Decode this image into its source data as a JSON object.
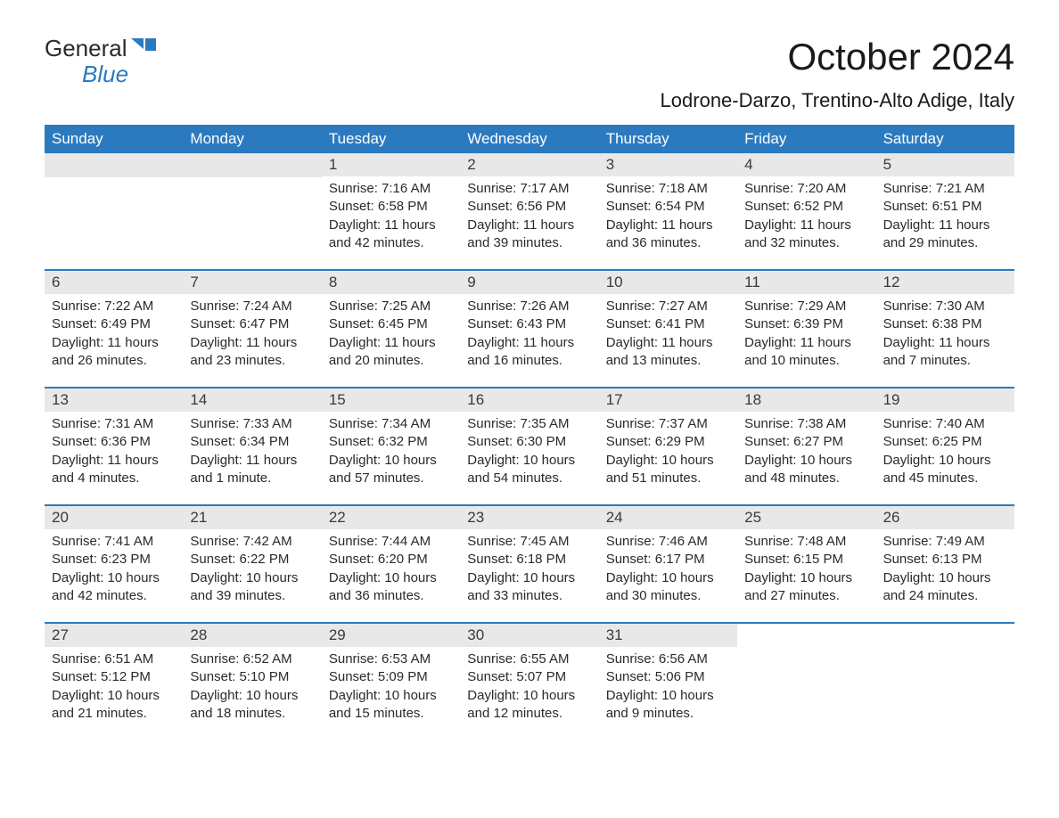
{
  "logo": {
    "top": "General",
    "bottom": "Blue",
    "icon_color": "#2b7ac0"
  },
  "title": "October 2024",
  "location": "Lodrone-Darzo, Trentino-Alto Adige, Italy",
  "colors": {
    "header_bg": "#2b7ac0",
    "header_text": "#ffffff",
    "day_number_bg": "#e8e8e8",
    "border": "#2b7ac0",
    "text": "#2a2a2a"
  },
  "weekdays": [
    "Sunday",
    "Monday",
    "Tuesday",
    "Wednesday",
    "Thursday",
    "Friday",
    "Saturday"
  ],
  "weeks": [
    [
      {
        "empty": true
      },
      {
        "empty": true
      },
      {
        "day": "1",
        "sunrise": "Sunrise: 7:16 AM",
        "sunset": "Sunset: 6:58 PM",
        "daylight1": "Daylight: 11 hours",
        "daylight2": "and 42 minutes."
      },
      {
        "day": "2",
        "sunrise": "Sunrise: 7:17 AM",
        "sunset": "Sunset: 6:56 PM",
        "daylight1": "Daylight: 11 hours",
        "daylight2": "and 39 minutes."
      },
      {
        "day": "3",
        "sunrise": "Sunrise: 7:18 AM",
        "sunset": "Sunset: 6:54 PM",
        "daylight1": "Daylight: 11 hours",
        "daylight2": "and 36 minutes."
      },
      {
        "day": "4",
        "sunrise": "Sunrise: 7:20 AM",
        "sunset": "Sunset: 6:52 PM",
        "daylight1": "Daylight: 11 hours",
        "daylight2": "and 32 minutes."
      },
      {
        "day": "5",
        "sunrise": "Sunrise: 7:21 AM",
        "sunset": "Sunset: 6:51 PM",
        "daylight1": "Daylight: 11 hours",
        "daylight2": "and 29 minutes."
      }
    ],
    [
      {
        "day": "6",
        "sunrise": "Sunrise: 7:22 AM",
        "sunset": "Sunset: 6:49 PM",
        "daylight1": "Daylight: 11 hours",
        "daylight2": "and 26 minutes."
      },
      {
        "day": "7",
        "sunrise": "Sunrise: 7:24 AM",
        "sunset": "Sunset: 6:47 PM",
        "daylight1": "Daylight: 11 hours",
        "daylight2": "and 23 minutes."
      },
      {
        "day": "8",
        "sunrise": "Sunrise: 7:25 AM",
        "sunset": "Sunset: 6:45 PM",
        "daylight1": "Daylight: 11 hours",
        "daylight2": "and 20 minutes."
      },
      {
        "day": "9",
        "sunrise": "Sunrise: 7:26 AM",
        "sunset": "Sunset: 6:43 PM",
        "daylight1": "Daylight: 11 hours",
        "daylight2": "and 16 minutes."
      },
      {
        "day": "10",
        "sunrise": "Sunrise: 7:27 AM",
        "sunset": "Sunset: 6:41 PM",
        "daylight1": "Daylight: 11 hours",
        "daylight2": "and 13 minutes."
      },
      {
        "day": "11",
        "sunrise": "Sunrise: 7:29 AM",
        "sunset": "Sunset: 6:39 PM",
        "daylight1": "Daylight: 11 hours",
        "daylight2": "and 10 minutes."
      },
      {
        "day": "12",
        "sunrise": "Sunrise: 7:30 AM",
        "sunset": "Sunset: 6:38 PM",
        "daylight1": "Daylight: 11 hours",
        "daylight2": "and 7 minutes."
      }
    ],
    [
      {
        "day": "13",
        "sunrise": "Sunrise: 7:31 AM",
        "sunset": "Sunset: 6:36 PM",
        "daylight1": "Daylight: 11 hours",
        "daylight2": "and 4 minutes."
      },
      {
        "day": "14",
        "sunrise": "Sunrise: 7:33 AM",
        "sunset": "Sunset: 6:34 PM",
        "daylight1": "Daylight: 11 hours",
        "daylight2": "and 1 minute."
      },
      {
        "day": "15",
        "sunrise": "Sunrise: 7:34 AM",
        "sunset": "Sunset: 6:32 PM",
        "daylight1": "Daylight: 10 hours",
        "daylight2": "and 57 minutes."
      },
      {
        "day": "16",
        "sunrise": "Sunrise: 7:35 AM",
        "sunset": "Sunset: 6:30 PM",
        "daylight1": "Daylight: 10 hours",
        "daylight2": "and 54 minutes."
      },
      {
        "day": "17",
        "sunrise": "Sunrise: 7:37 AM",
        "sunset": "Sunset: 6:29 PM",
        "daylight1": "Daylight: 10 hours",
        "daylight2": "and 51 minutes."
      },
      {
        "day": "18",
        "sunrise": "Sunrise: 7:38 AM",
        "sunset": "Sunset: 6:27 PM",
        "daylight1": "Daylight: 10 hours",
        "daylight2": "and 48 minutes."
      },
      {
        "day": "19",
        "sunrise": "Sunrise: 7:40 AM",
        "sunset": "Sunset: 6:25 PM",
        "daylight1": "Daylight: 10 hours",
        "daylight2": "and 45 minutes."
      }
    ],
    [
      {
        "day": "20",
        "sunrise": "Sunrise: 7:41 AM",
        "sunset": "Sunset: 6:23 PM",
        "daylight1": "Daylight: 10 hours",
        "daylight2": "and 42 minutes."
      },
      {
        "day": "21",
        "sunrise": "Sunrise: 7:42 AM",
        "sunset": "Sunset: 6:22 PM",
        "daylight1": "Daylight: 10 hours",
        "daylight2": "and 39 minutes."
      },
      {
        "day": "22",
        "sunrise": "Sunrise: 7:44 AM",
        "sunset": "Sunset: 6:20 PM",
        "daylight1": "Daylight: 10 hours",
        "daylight2": "and 36 minutes."
      },
      {
        "day": "23",
        "sunrise": "Sunrise: 7:45 AM",
        "sunset": "Sunset: 6:18 PM",
        "daylight1": "Daylight: 10 hours",
        "daylight2": "and 33 minutes."
      },
      {
        "day": "24",
        "sunrise": "Sunrise: 7:46 AM",
        "sunset": "Sunset: 6:17 PM",
        "daylight1": "Daylight: 10 hours",
        "daylight2": "and 30 minutes."
      },
      {
        "day": "25",
        "sunrise": "Sunrise: 7:48 AM",
        "sunset": "Sunset: 6:15 PM",
        "daylight1": "Daylight: 10 hours",
        "daylight2": "and 27 minutes."
      },
      {
        "day": "26",
        "sunrise": "Sunrise: 7:49 AM",
        "sunset": "Sunset: 6:13 PM",
        "daylight1": "Daylight: 10 hours",
        "daylight2": "and 24 minutes."
      }
    ],
    [
      {
        "day": "27",
        "sunrise": "Sunrise: 6:51 AM",
        "sunset": "Sunset: 5:12 PM",
        "daylight1": "Daylight: 10 hours",
        "daylight2": "and 21 minutes."
      },
      {
        "day": "28",
        "sunrise": "Sunrise: 6:52 AM",
        "sunset": "Sunset: 5:10 PM",
        "daylight1": "Daylight: 10 hours",
        "daylight2": "and 18 minutes."
      },
      {
        "day": "29",
        "sunrise": "Sunrise: 6:53 AM",
        "sunset": "Sunset: 5:09 PM",
        "daylight1": "Daylight: 10 hours",
        "daylight2": "and 15 minutes."
      },
      {
        "day": "30",
        "sunrise": "Sunrise: 6:55 AM",
        "sunset": "Sunset: 5:07 PM",
        "daylight1": "Daylight: 10 hours",
        "daylight2": "and 12 minutes."
      },
      {
        "day": "31",
        "sunrise": "Sunrise: 6:56 AM",
        "sunset": "Sunset: 5:06 PM",
        "daylight1": "Daylight: 10 hours",
        "daylight2": "and 9 minutes."
      },
      {
        "empty": true,
        "noheader": true
      },
      {
        "empty": true,
        "noheader": true
      }
    ]
  ]
}
